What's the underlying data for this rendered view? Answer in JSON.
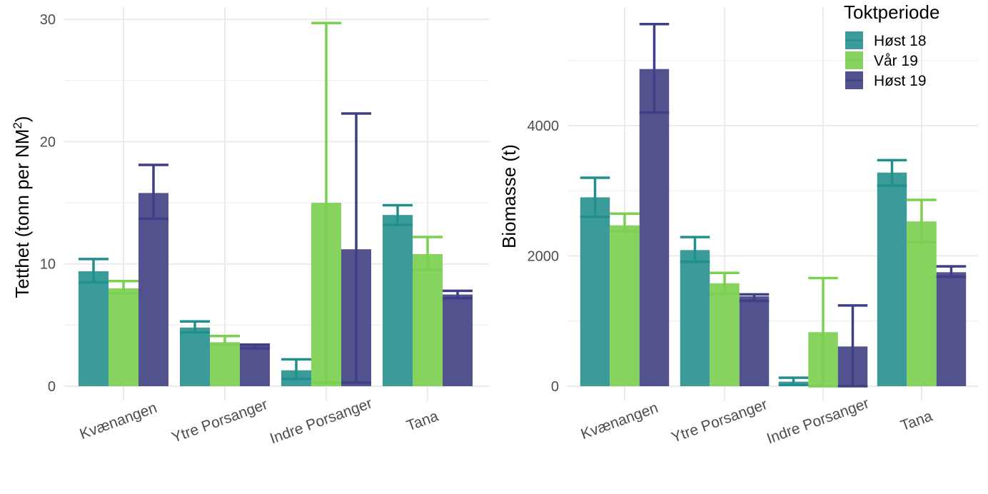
{
  "chart_data": [
    {
      "type": "bar",
      "title": "",
      "xlabel": "",
      "ylabel": "Tetthet (tonn per NM²)",
      "ylabel_main": "Tetthet (tonn per NM",
      "ylabel_sup": "2",
      "ylabel_close": ")",
      "ylim": [
        0,
        31
      ],
      "yticks": [
        0,
        10,
        20,
        30
      ],
      "yminor": [
        5,
        15,
        25
      ],
      "grid": true,
      "categories": [
        "Kvænangen",
        "Ytre Porsanger",
        "Indre Porsanger",
        "Tana"
      ],
      "series": [
        {
          "name": "Høst 18",
          "values": [
            9.4,
            4.8,
            1.3,
            14.0
          ],
          "lower": [
            8.5,
            4.4,
            0.6,
            13.2
          ],
          "upper": [
            10.4,
            5.3,
            2.2,
            14.8
          ]
        },
        {
          "name": "Vår 19",
          "values": [
            8.0,
            3.6,
            15.0,
            10.8
          ],
          "lower": [
            7.6,
            3.4,
            0.3,
            9.5
          ],
          "upper": [
            8.6,
            4.1,
            29.7,
            12.2
          ]
        },
        {
          "name": "Høst 19",
          "values": [
            15.8,
            3.3,
            11.2,
            7.5
          ],
          "lower": [
            13.7,
            3.1,
            0.3,
            7.2
          ],
          "upper": [
            18.1,
            3.4,
            22.3,
            7.8
          ]
        }
      ]
    },
    {
      "type": "bar",
      "title": "",
      "xlabel": "",
      "ylabel": "Biomasse (t)",
      "ylim": [
        0,
        5820
      ],
      "yticks": [
        0,
        2000,
        4000
      ],
      "yminor": [
        1000,
        3000,
        5000
      ],
      "grid": true,
      "categories": [
        "Kvænangen",
        "Ytre Porsanger",
        "Indre Porsanger",
        "Tana"
      ],
      "series": [
        {
          "name": "Høst 18",
          "values": [
            2900,
            2090,
            70,
            3280
          ],
          "lower": [
            2600,
            1910,
            20,
            3080
          ],
          "upper": [
            3200,
            2290,
            130,
            3470
          ]
        },
        {
          "name": "Vår 19",
          "values": [
            2470,
            1580,
            830,
            2530
          ],
          "lower": [
            2380,
            1420,
            0,
            2210
          ],
          "upper": [
            2650,
            1740,
            1660,
            2860
          ]
        },
        {
          "name": "Høst 19",
          "values": [
            4870,
            1380,
            610,
            1750
          ],
          "lower": [
            4200,
            1310,
            0,
            1680
          ],
          "upper": [
            5560,
            1410,
            1240,
            1840
          ]
        }
      ]
    }
  ],
  "legend": {
    "title": "Toktperiode",
    "placement": "top-right",
    "items": [
      "Høst 18",
      "Vår 19",
      "Høst 19"
    ]
  },
  "colors": {
    "fill": [
      "#3A9B98",
      "#86D35F",
      "#52528F"
    ],
    "error": [
      "#21908C",
      "#7AD151",
      "#3E3F86"
    ],
    "grid": "#EBEBEB"
  }
}
